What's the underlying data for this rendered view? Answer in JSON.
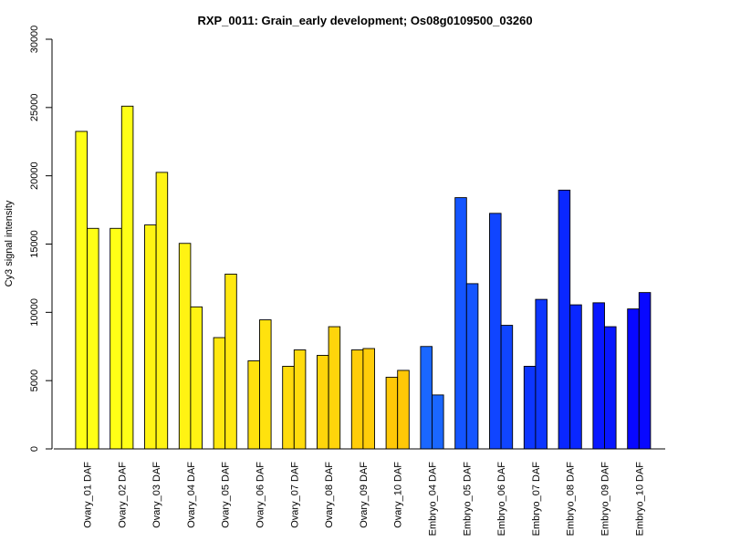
{
  "chart_data": {
    "type": "bar",
    "title": "RXP_0011: Grain_early development; Os08g0109500_03260",
    "xlabel": "",
    "ylabel": "Cy3 signal intensity",
    "ylim": [
      0,
      30000
    ],
    "yticks": [
      0,
      5000,
      10000,
      15000,
      20000,
      25000,
      30000
    ],
    "grid": false,
    "categories": [
      "Ovary_01 DAF",
      "Ovary_02 DAF",
      "Ovary_03 DAF",
      "Ovary_04 DAF",
      "Ovary_05 DAF",
      "Ovary_06 DAF",
      "Ovary_07 DAF",
      "Ovary_08 DAF",
      "Ovary_09 DAF",
      "Ovary_10 DAF",
      "Embryo_04 DAF",
      "Embryo_05 DAF",
      "Embryo_06 DAF",
      "Embryo_07 DAF",
      "Embryo_08 DAF",
      "Embryo_09 DAF",
      "Embryo_10 DAF"
    ],
    "series": [
      {
        "values": [
          23250,
          16150,
          16400,
          15050,
          8150,
          6450,
          6050,
          6850,
          7250,
          5250,
          7500,
          18400,
          17250,
          6050,
          18950,
          10700,
          10250
        ]
      },
      {
        "values": [
          16150,
          25100,
          20250,
          10400,
          12800,
          9450,
          7250,
          8950,
          7350,
          5750,
          3950,
          12100,
          9050,
          10950,
          10550,
          8950,
          11450
        ]
      }
    ],
    "colors": [
      "#ffff16",
      "#ffff16",
      "#fff413",
      "#fff313",
      "#ffe810",
      "#ffe20e",
      "#ffdb0d",
      "#ffd50b",
      "#ffcd09",
      "#ffc807",
      "#1a67ff",
      "#1455ff",
      "#1045ff",
      "#0d36ff",
      "#0a27ff",
      "#0817ff",
      "#0808ff"
    ]
  }
}
